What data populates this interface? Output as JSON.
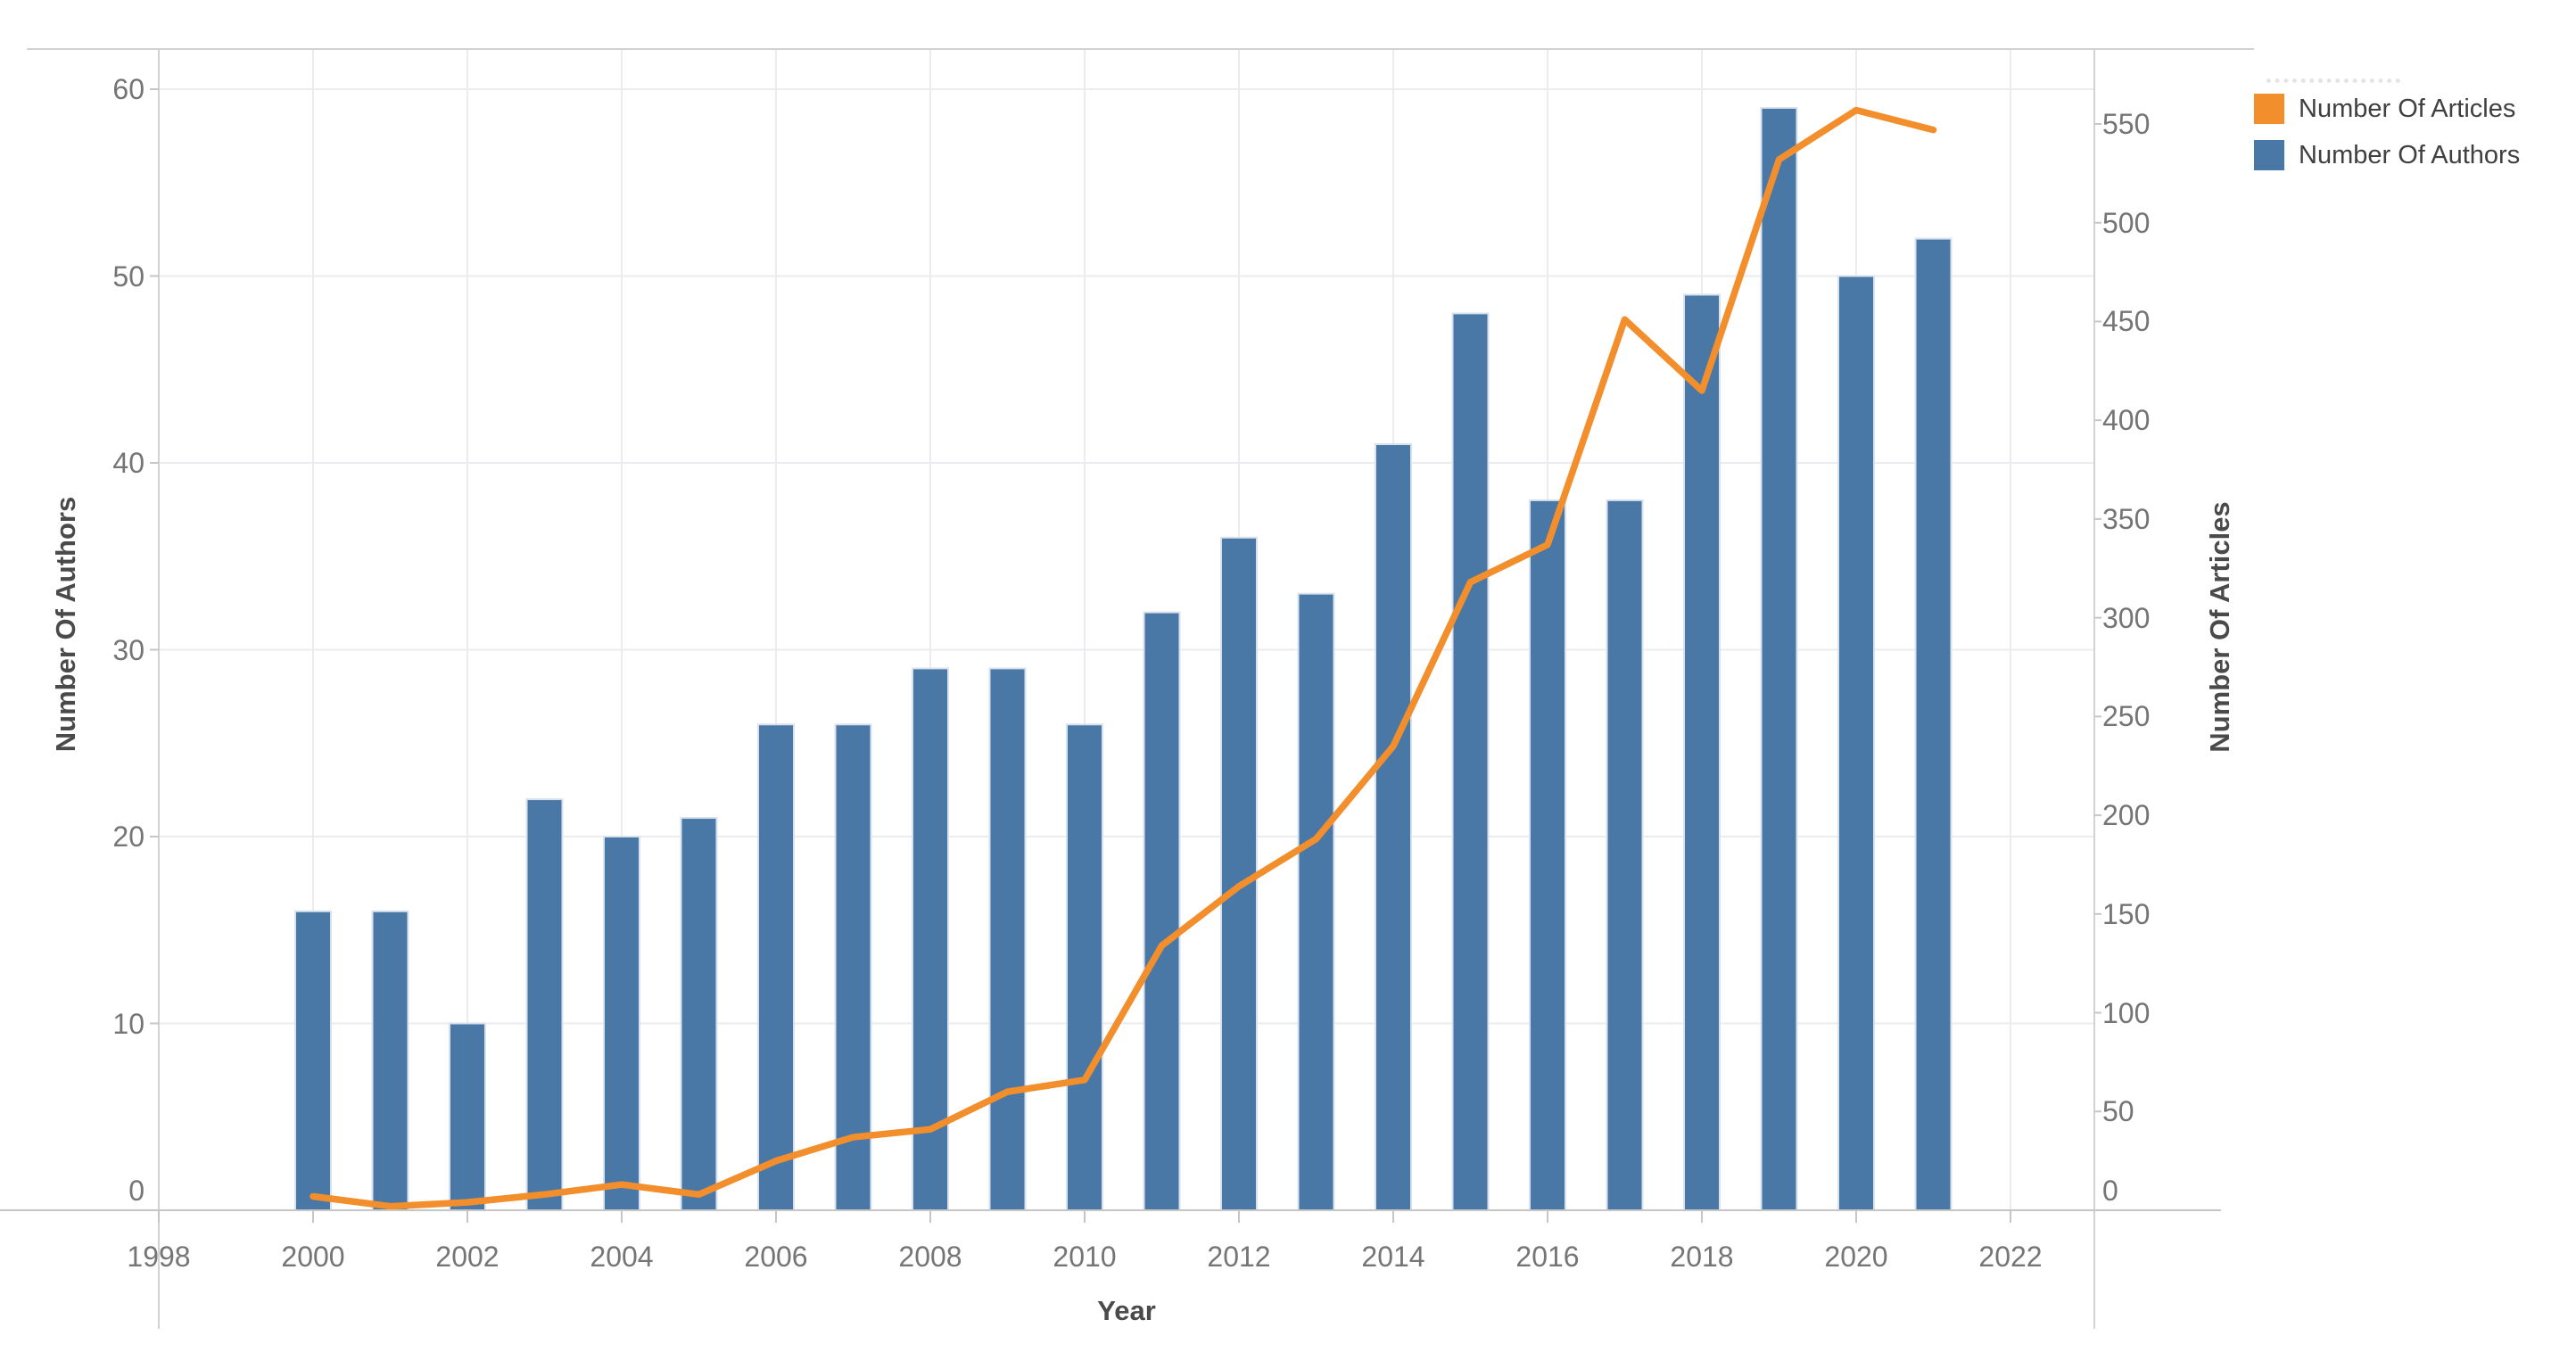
{
  "chart_data": {
    "type": "bar+line dual-axis",
    "title": "",
    "categories": [
      2000,
      2001,
      2002,
      2003,
      2004,
      2005,
      2006,
      2007,
      2008,
      2009,
      2010,
      2011,
      2012,
      2013,
      2014,
      2015,
      2016,
      2017,
      2018,
      2019,
      2020,
      2021
    ],
    "series": [
      {
        "name": "Number Of Authors",
        "type": "bar",
        "axis": "left",
        "color": "#4a78a6",
        "values": [
          16,
          16,
          10,
          22,
          20,
          21,
          26,
          26,
          29,
          29,
          26,
          32,
          36,
          33,
          41,
          48,
          38,
          38,
          49,
          59,
          50,
          52
        ]
      },
      {
        "name": "Number Of Articles",
        "type": "line",
        "axis": "right",
        "color": "#f28e2b",
        "values": [
          7,
          2,
          4,
          8,
          13,
          8,
          25,
          37,
          41,
          60,
          66,
          134,
          164,
          188,
          235,
          318,
          337,
          451,
          415,
          532,
          557,
          547
        ]
      }
    ],
    "x_axis": {
      "title": "Year",
      "ticks": [
        1998,
        2000,
        2002,
        2004,
        2006,
        2008,
        2010,
        2012,
        2014,
        2016,
        2018,
        2020,
        2022
      ],
      "range": [
        1998,
        2023.2
      ]
    },
    "y_axis_left": {
      "title": "Number Of Authors",
      "ticks": [
        0,
        10,
        20,
        30,
        40,
        50,
        60
      ],
      "range": [
        0,
        62.2
      ]
    },
    "y_axis_right": {
      "title": "Number Of Articles",
      "ticks": [
        0,
        50,
        100,
        150,
        200,
        250,
        300,
        350,
        400,
        450,
        500,
        550
      ],
      "range": [
        0,
        588
      ]
    },
    "grid": true,
    "legend": {
      "position": "top-right",
      "items": [
        {
          "label": "Number Of Articles",
          "color": "#f28e2b"
        },
        {
          "label": "Number Of Authors",
          "color": "#4a78a6"
        }
      ]
    },
    "colors": {
      "bar": "#4a78a6",
      "bar_edge": "#d8e2ec",
      "line": "#f28e2b",
      "gridline": "#ebebf0",
      "axis_line": "#d2d2d2",
      "baseline": "#c6c6c6",
      "tick_label": "#757575",
      "axis_title": "#4a4a4a"
    }
  }
}
